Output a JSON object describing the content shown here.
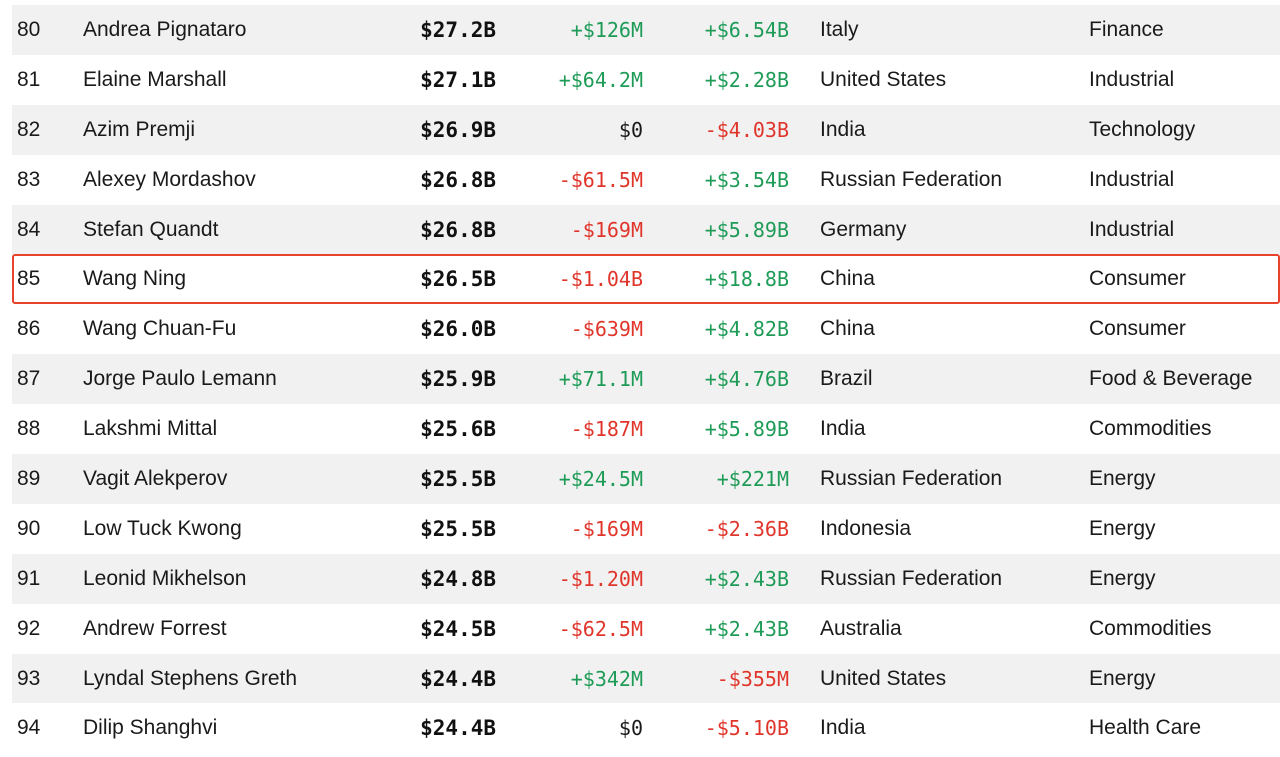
{
  "table": {
    "rows": [
      {
        "rank": "80",
        "name": "Andrea Pignataro",
        "net_worth": "$27.2B",
        "last_change": "+$126M",
        "ytd_change": "+$6.54B",
        "country": "Italy",
        "industry": "Finance"
      },
      {
        "rank": "81",
        "name": "Elaine Marshall",
        "net_worth": "$27.1B",
        "last_change": "+$64.2M",
        "ytd_change": "+$2.28B",
        "country": "United States",
        "industry": "Industrial"
      },
      {
        "rank": "82",
        "name": "Azim Premji",
        "net_worth": "$26.9B",
        "last_change": "$0",
        "ytd_change": "-$4.03B",
        "country": "India",
        "industry": "Technology"
      },
      {
        "rank": "83",
        "name": "Alexey Mordashov",
        "net_worth": "$26.8B",
        "last_change": "-$61.5M",
        "ytd_change": "+$3.54B",
        "country": "Russian Federation",
        "industry": "Industrial"
      },
      {
        "rank": "84",
        "name": "Stefan Quandt",
        "net_worth": "$26.8B",
        "last_change": "-$169M",
        "ytd_change": "+$5.89B",
        "country": "Germany",
        "industry": "Industrial"
      },
      {
        "rank": "85",
        "name": "Wang Ning",
        "net_worth": "$26.5B",
        "last_change": "-$1.04B",
        "ytd_change": "+$18.8B",
        "country": "China",
        "industry": "Consumer"
      },
      {
        "rank": "86",
        "name": "Wang Chuan-Fu",
        "net_worth": "$26.0B",
        "last_change": "-$639M",
        "ytd_change": "+$4.82B",
        "country": "China",
        "industry": "Consumer"
      },
      {
        "rank": "87",
        "name": "Jorge Paulo Lemann",
        "net_worth": "$25.9B",
        "last_change": "+$71.1M",
        "ytd_change": "+$4.76B",
        "country": "Brazil",
        "industry": "Food & Beverage"
      },
      {
        "rank": "88",
        "name": "Lakshmi Mittal",
        "net_worth": "$25.6B",
        "last_change": "-$187M",
        "ytd_change": "+$5.89B",
        "country": "India",
        "industry": "Commodities"
      },
      {
        "rank": "89",
        "name": "Vagit Alekperov",
        "net_worth": "$25.5B",
        "last_change": "+$24.5M",
        "ytd_change": "+$221M",
        "country": "Russian Federation",
        "industry": "Energy"
      },
      {
        "rank": "90",
        "name": "Low Tuck Kwong",
        "net_worth": "$25.5B",
        "last_change": "-$169M",
        "ytd_change": "-$2.36B",
        "country": "Indonesia",
        "industry": "Energy"
      },
      {
        "rank": "91",
        "name": "Leonid Mikhelson",
        "net_worth": "$24.8B",
        "last_change": "-$1.20M",
        "ytd_change": "+$2.43B",
        "country": "Russian Federation",
        "industry": "Energy"
      },
      {
        "rank": "92",
        "name": "Andrew Forrest",
        "net_worth": "$24.5B",
        "last_change": "-$62.5M",
        "ytd_change": "+$2.43B",
        "country": "Australia",
        "industry": "Commodities"
      },
      {
        "rank": "93",
        "name": "Lyndal Stephens Greth",
        "net_worth": "$24.4B",
        "last_change": "+$342M",
        "ytd_change": "-$355M",
        "country": "United States",
        "industry": "Energy"
      },
      {
        "rank": "94",
        "name": "Dilip Shanghvi",
        "net_worth": "$24.4B",
        "last_change": "$0",
        "ytd_change": "-$5.10B",
        "country": "India",
        "industry": "Health Care"
      }
    ],
    "highlighted_rank": "85"
  },
  "colors": {
    "positive": "#1e9b57",
    "negative": "#e0352b",
    "stripe": "#f1f1f1",
    "highlight_border": "#e8412c"
  }
}
